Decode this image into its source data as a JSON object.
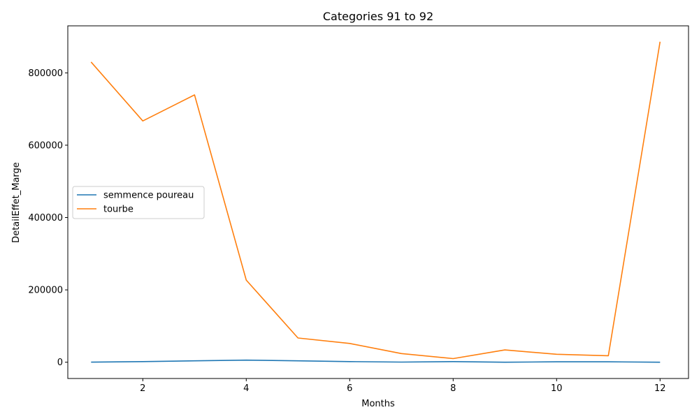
{
  "chart_data": {
    "type": "line",
    "title": "Categories 91 to 92",
    "xlabel": "Months",
    "ylabel": "DetailEffet_Marge",
    "xlim": [
      0.55,
      12.55
    ],
    "ylim": [
      -45000,
      930000
    ],
    "xticks": [
      2,
      4,
      6,
      8,
      10,
      12
    ],
    "yticks": [
      0,
      200000,
      400000,
      600000,
      800000
    ],
    "grid": false,
    "legend_position": "center-left",
    "x": [
      1,
      2,
      3,
      4,
      5,
      6,
      7,
      8,
      9,
      10,
      11,
      12
    ],
    "series": [
      {
        "name": "semmence poureau",
        "color": "#1f77b4",
        "values": [
          100,
          1800,
          3800,
          5700,
          3800,
          1800,
          300,
          1700,
          0,
          1200,
          1100,
          0
        ]
      },
      {
        "name": "tourbe",
        "color": "#ff7f0e",
        "values": [
          830000,
          667000,
          739000,
          227000,
          67000,
          52000,
          24000,
          10000,
          34000,
          22000,
          18000,
          886000
        ]
      }
    ]
  }
}
